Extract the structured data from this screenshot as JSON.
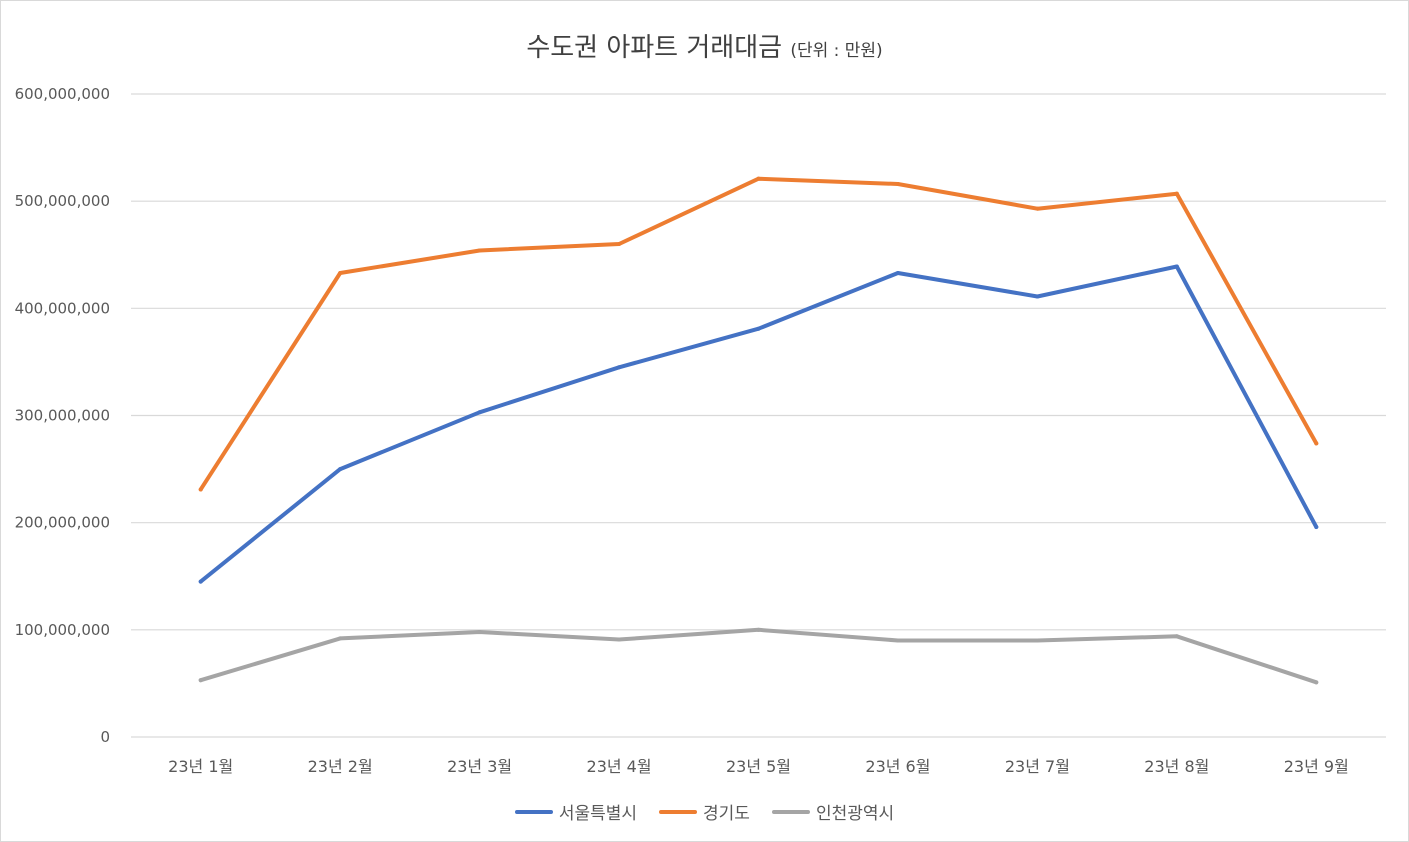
{
  "chart_data": {
    "type": "line",
    "title": "수도권 아파트 거래대금",
    "subtitle": "(단위 : 만원)",
    "categories": [
      "23년 1월",
      "23년 2월",
      "23년 3월",
      "23년 4월",
      "23년 5월",
      "23년 6월",
      "23년 7월",
      "23년 8월",
      "23년 9월"
    ],
    "series": [
      {
        "name": "서울특별시",
        "color": "#4472c4",
        "values": [
          145000000,
          250000000,
          303000000,
          345000000,
          381000000,
          433000000,
          411000000,
          439000000,
          196000000
        ]
      },
      {
        "name": "경기도",
        "color": "#ed7d31",
        "values": [
          231000000,
          433000000,
          454000000,
          460000000,
          521000000,
          516000000,
          493000000,
          507000000,
          274000000
        ]
      },
      {
        "name": "인천광역시",
        "color": "#a5a5a5",
        "values": [
          53000000,
          92000000,
          98000000,
          91000000,
          100000000,
          90000000,
          90000000,
          94000000,
          51000000
        ]
      }
    ],
    "y_ticks": [
      "0",
      "100,000,000",
      "200,000,000",
      "300,000,000",
      "400,000,000",
      "500,000,000",
      "600,000,000"
    ],
    "ylim": [
      0,
      600000000
    ],
    "grid": true,
    "legend": "bottom",
    "gridline_color": "#d9d9d9"
  }
}
